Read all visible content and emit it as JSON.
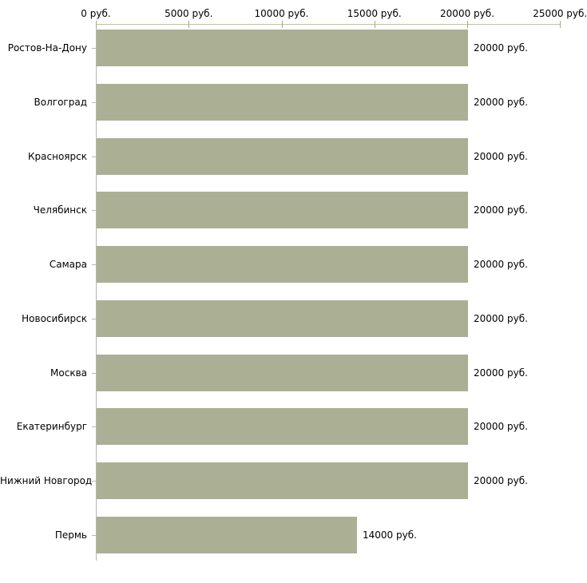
{
  "chart_data": {
    "type": "bar",
    "orientation": "horizontal",
    "title": "",
    "xlabel": "",
    "ylabel": "",
    "categories": [
      "Ростов-На-Дону",
      "Волгоград",
      "Красноярск",
      "Челябинск",
      "Самара",
      "Новосибирск",
      "Москва",
      "Екатеринбург",
      "Нижний Новгород",
      "Пермь"
    ],
    "values": [
      20000,
      20000,
      20000,
      20000,
      20000,
      20000,
      20000,
      20000,
      20000,
      14000
    ],
    "value_labels": [
      "20000 руб.",
      "20000 руб.",
      "20000 руб.",
      "20000 руб.",
      "20000 руб.",
      "20000 руб.",
      "20000 руб.",
      "20000 руб.",
      "20000 руб.",
      "14000 руб."
    ],
    "x_axis": {
      "position": "top",
      "min": 0,
      "max": 25000,
      "unit": "руб.",
      "ticks": [
        0,
        5000,
        10000,
        15000,
        20000,
        25000
      ],
      "tick_labels": [
        "0 руб.",
        "5000 руб.",
        "10000 руб.",
        "15000 руб.",
        "20000 руб.",
        "25000 руб."
      ]
    },
    "grid": false,
    "legend": false,
    "colors": {
      "bar": "#abb094",
      "axis_line": "#c3c39b",
      "tick_mark": "#a8a87e",
      "category_axis_line": "#b5b5b5",
      "category_tick_mark": "#b5b5b5",
      "text": "#000000",
      "background": "#ffffff"
    }
  }
}
